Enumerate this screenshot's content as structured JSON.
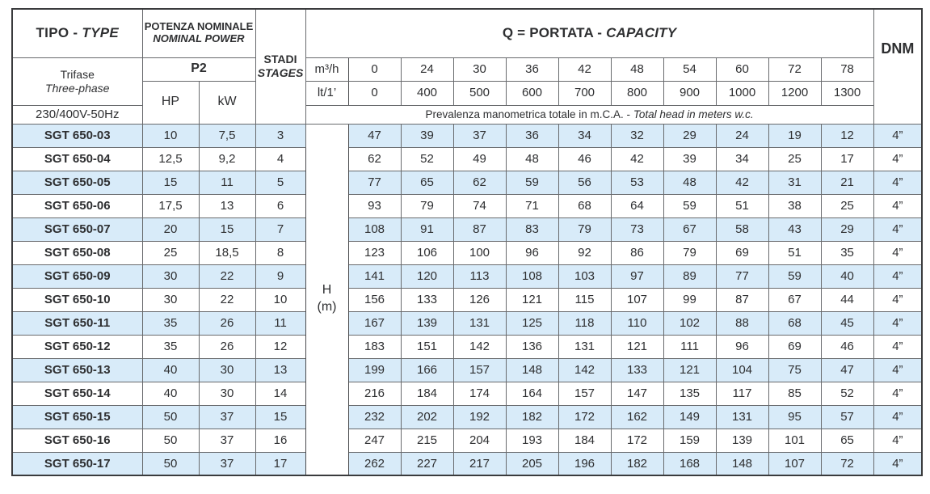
{
  "table": {
    "headers": {
      "tipo_it": "TIPO -",
      "tipo_en": "TYPE",
      "potenza_it": "POTENZA NOMINALE",
      "potenza_en": "NOMINAL POWER",
      "stadi_it": "STADI",
      "stadi_en": "STAGES",
      "portata_it": "Q = PORTATA -",
      "portata_en": "CAPACITY",
      "dnm": "DNM",
      "p2": "P2",
      "hp": "HP",
      "kw": "kW",
      "trifase_it": "Trifase",
      "trifase_en": "Three-phase",
      "voltage": "230/400V-50Hz",
      "m3h_label": "m³/h",
      "lt_label": "lt/1’",
      "prevalenza_it": "Prevalenza manometrica totale in m.C.A. -",
      "prevalenza_en": "Total head in meters w.c.",
      "h_label": "H",
      "h_unit": "(m)"
    },
    "flow_m3h": [
      "0",
      "24",
      "30",
      "36",
      "42",
      "48",
      "54",
      "60",
      "72",
      "78"
    ],
    "flow_lt": [
      "0",
      "400",
      "500",
      "600",
      "700",
      "800",
      "900",
      "1000",
      "1200",
      "1300"
    ],
    "rows": [
      {
        "model": "SGT 650-03",
        "hp": "10",
        "kw": "7,5",
        "stages": "3",
        "head": [
          "47",
          "39",
          "37",
          "36",
          "34",
          "32",
          "29",
          "24",
          "19",
          "12"
        ],
        "dnm": "4”"
      },
      {
        "model": "SGT 650-04",
        "hp": "12,5",
        "kw": "9,2",
        "stages": "4",
        "head": [
          "62",
          "52",
          "49",
          "48",
          "46",
          "42",
          "39",
          "34",
          "25",
          "17"
        ],
        "dnm": "4”"
      },
      {
        "model": "SGT 650-05",
        "hp": "15",
        "kw": "11",
        "stages": "5",
        "head": [
          "77",
          "65",
          "62",
          "59",
          "56",
          "53",
          "48",
          "42",
          "31",
          "21"
        ],
        "dnm": "4”"
      },
      {
        "model": "SGT 650-06",
        "hp": "17,5",
        "kw": "13",
        "stages": "6",
        "head": [
          "93",
          "79",
          "74",
          "71",
          "68",
          "64",
          "59",
          "51",
          "38",
          "25"
        ],
        "dnm": "4”"
      },
      {
        "model": "SGT 650-07",
        "hp": "20",
        "kw": "15",
        "stages": "7",
        "head": [
          "108",
          "91",
          "87",
          "83",
          "79",
          "73",
          "67",
          "58",
          "43",
          "29"
        ],
        "dnm": "4”"
      },
      {
        "model": "SGT 650-08",
        "hp": "25",
        "kw": "18,5",
        "stages": "8",
        "head": [
          "123",
          "106",
          "100",
          "96",
          "92",
          "86",
          "79",
          "69",
          "51",
          "35"
        ],
        "dnm": "4”"
      },
      {
        "model": "SGT 650-09",
        "hp": "30",
        "kw": "22",
        "stages": "9",
        "head": [
          "141",
          "120",
          "113",
          "108",
          "103",
          "97",
          "89",
          "77",
          "59",
          "40"
        ],
        "dnm": "4”"
      },
      {
        "model": "SGT 650-10",
        "hp": "30",
        "kw": "22",
        "stages": "10",
        "head": [
          "156",
          "133",
          "126",
          "121",
          "115",
          "107",
          "99",
          "87",
          "67",
          "44"
        ],
        "dnm": "4”"
      },
      {
        "model": "SGT 650-11",
        "hp": "35",
        "kw": "26",
        "stages": "11",
        "head": [
          "167",
          "139",
          "131",
          "125",
          "118",
          "110",
          "102",
          "88",
          "68",
          "45"
        ],
        "dnm": "4”"
      },
      {
        "model": "SGT 650-12",
        "hp": "35",
        "kw": "26",
        "stages": "12",
        "head": [
          "183",
          "151",
          "142",
          "136",
          "131",
          "121",
          "111",
          "96",
          "69",
          "46"
        ],
        "dnm": "4”"
      },
      {
        "model": "SGT 650-13",
        "hp": "40",
        "kw": "30",
        "stages": "13",
        "head": [
          "199",
          "166",
          "157",
          "148",
          "142",
          "133",
          "121",
          "104",
          "75",
          "47"
        ],
        "dnm": "4”"
      },
      {
        "model": "SGT 650-14",
        "hp": "40",
        "kw": "30",
        "stages": "14",
        "head": [
          "216",
          "184",
          "174",
          "164",
          "157",
          "147",
          "135",
          "117",
          "85",
          "52"
        ],
        "dnm": "4”"
      },
      {
        "model": "SGT 650-15",
        "hp": "50",
        "kw": "37",
        "stages": "15",
        "head": [
          "232",
          "202",
          "192",
          "182",
          "172",
          "162",
          "149",
          "131",
          "95",
          "57"
        ],
        "dnm": "4”"
      },
      {
        "model": "SGT 650-16",
        "hp": "50",
        "kw": "37",
        "stages": "16",
        "head": [
          "247",
          "215",
          "204",
          "193",
          "184",
          "172",
          "159",
          "139",
          "101",
          "65"
        ],
        "dnm": "4”"
      },
      {
        "model": "SGT 650-17",
        "hp": "50",
        "kw": "37",
        "stages": "17",
        "head": [
          "262",
          "227",
          "217",
          "205",
          "196",
          "182",
          "168",
          "148",
          "107",
          "72"
        ],
        "dnm": "4”"
      }
    ],
    "colors": {
      "row_alt_blue": "#d8ebf9",
      "border_dark": "#3a3b3d",
      "border_inner": "#686a6d",
      "text": "#2e2f31"
    }
  }
}
